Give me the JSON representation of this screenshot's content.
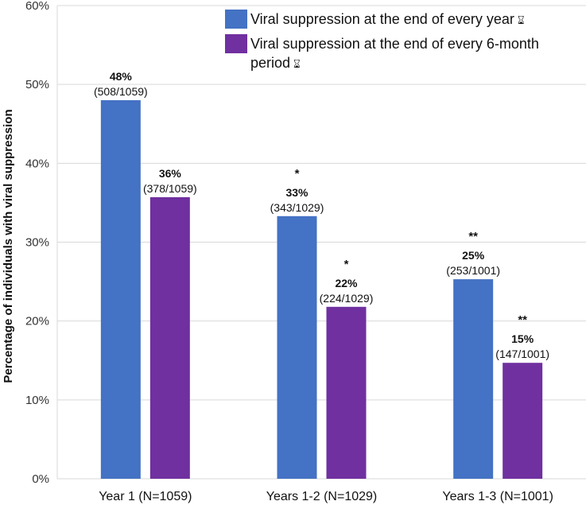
{
  "chart_data": {
    "type": "bar",
    "ylabel": "Percentage of individuals with viral suppression",
    "yticks": [
      "0%",
      "10%",
      "20%",
      "30%",
      "40%",
      "50%",
      "60%"
    ],
    "ylim": [
      0,
      60
    ],
    "grid": true,
    "legend_position": "top-right",
    "categories": [
      "Year 1 (N=1059)",
      "Years 1-2 (N=1029)",
      "Years 1-3 (N=1001)"
    ],
    "series": [
      {
        "name": "Viral suppression at the end of every year",
        "color": "#4472c4",
        "values": [
          48,
          33.3,
          25.3
        ],
        "pct_labels": [
          "48%",
          "33%",
          "25%"
        ],
        "frac_labels": [
          "(508/1059)",
          "(343/1029)",
          "(253/1001)"
        ],
        "sig": [
          "",
          "*",
          "**"
        ]
      },
      {
        "name": "Viral suppression at the end of every 6-month period",
        "color": "#7030a0",
        "values": [
          35.7,
          21.8,
          14.7
        ],
        "pct_labels": [
          "36%",
          "22%",
          "15%"
        ],
        "frac_labels": [
          "(378/1059)",
          "(224/1029)",
          "(147/1001)"
        ],
        "sig": [
          "",
          "*",
          "**"
        ]
      }
    ]
  },
  "legend": {
    "item1": "Viral suppression at the end of every year",
    "item2_line1": "Viral suppression at the end of every 6-month",
    "item2_line2": "period",
    "icon": "ⴰ"
  }
}
